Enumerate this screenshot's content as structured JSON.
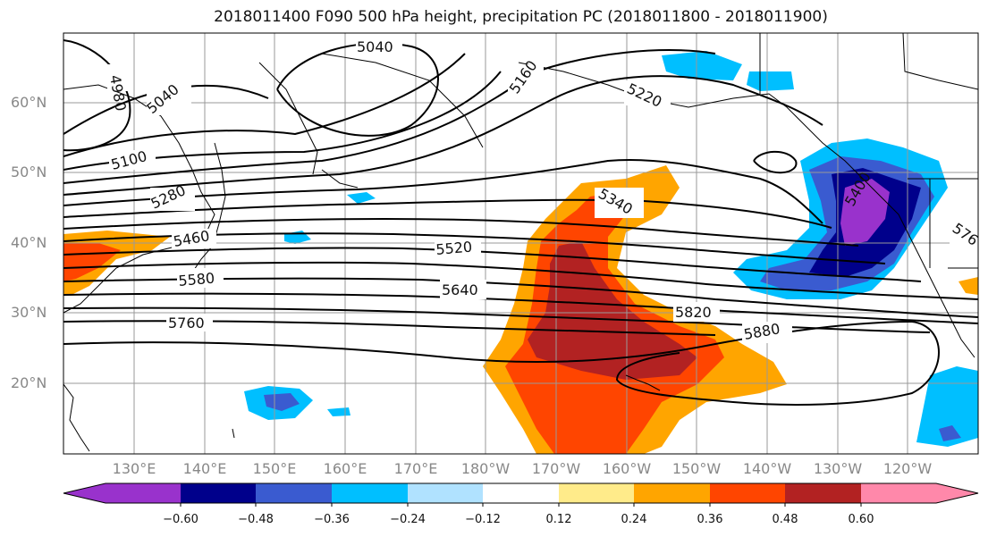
{
  "title": "2018011400 F090 500 hPa height, precipitation PC (2018011800 - 2018011900)",
  "lat_labels": [
    "60°N",
    "50°N",
    "40°N",
    "30°N",
    "20°N"
  ],
  "lon_labels": [
    "130°E",
    "140°E",
    "150°E",
    "160°E",
    "170°E",
    "180°W",
    "170°W",
    "160°W",
    "150°W",
    "140°W",
    "130°W",
    "120°W"
  ],
  "contour_labels": [
    "4980",
    "5040",
    "5040",
    "5100",
    "5160",
    "5220",
    "5280",
    "5340",
    "5400",
    "5460",
    "5520",
    "5580",
    "5640",
    "5760",
    "5820",
    "5880",
    "576"
  ],
  "colorbar": {
    "ticks": [
      "−0.60",
      "−0.48",
      "−0.36",
      "−0.24",
      "−0.12",
      "0.12",
      "0.24",
      "0.36",
      "0.48",
      "0.60"
    ],
    "colors": [
      "#9932cc",
      "#00008b",
      "#3a5bd0",
      "#00bfff",
      "#b0e2ff",
      "#ffffff",
      "#ffeb8a",
      "#ffa500",
      "#ff4500",
      "#b22222",
      "#ff88aa"
    ]
  }
}
